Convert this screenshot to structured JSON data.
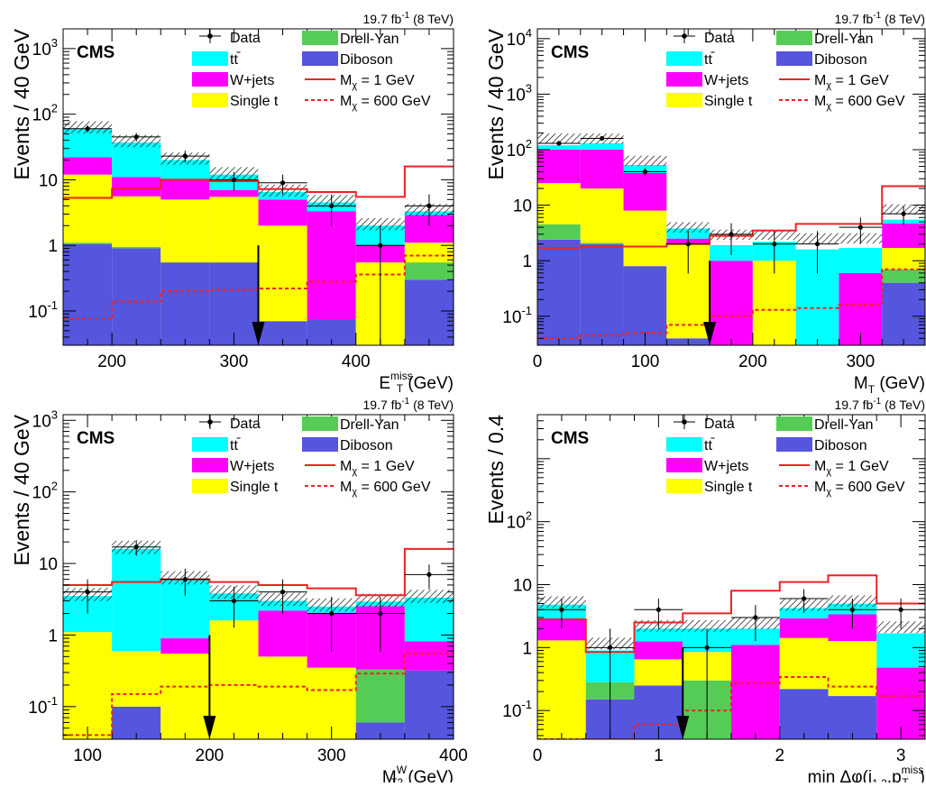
{
  "colors": {
    "ttbar": "#00ffff",
    "wjets": "#ff00ff",
    "single_t": "#ffff00",
    "dy": "#55cc55",
    "diboson": "#5555dd",
    "signal": "#ee2222"
  },
  "chart_data": [
    {
      "type": "bar",
      "stacked": true,
      "log_y": true,
      "lumi_label": "19.7 fb",
      "lumi_sup": "-1",
      "lumi_suffix": " (8 TeV)",
      "cms_label": "CMS",
      "ylabel": "Events / 40 GeV",
      "xlabel": "E",
      "xlabel_sup": "miss",
      "xlabel_sub": "T",
      "xlabel_suffix": " (GeV)",
      "x_range": [
        160,
        480
      ],
      "y_range": [
        0.03,
        2000
      ],
      "x_ticks": [
        "200",
        "300",
        "400"
      ],
      "y_ticks": [
        {
          "base": "10",
          "exp": "-1"
        },
        {
          "base": "1",
          "exp": ""
        },
        {
          "base": "10",
          "exp": ""
        },
        {
          "base": "10",
          "exp": "2"
        },
        {
          "base": "10",
          "exp": "3"
        }
      ],
      "bin_edges": [
        160,
        200,
        240,
        280,
        320,
        360,
        400,
        440,
        480
      ],
      "stack": [
        {
          "name": "Diboson",
          "values": [
            1.05,
            0.9,
            0.55,
            0.55,
            0.07,
            0.075,
            0.0,
            0.3
          ]
        },
        {
          "name": "Drell-Yan",
          "values": [
            0.05,
            0.05,
            0.0,
            0.0,
            0.0,
            0.0,
            0.0,
            0.25
          ]
        },
        {
          "name": "Single t",
          "values": [
            10.9,
            4.65,
            4.45,
            4.95,
            1.93,
            0.0,
            0.55,
            0.55
          ]
        },
        {
          "name": "W+jets",
          "values": [
            10.0,
            5.4,
            5.0,
            1.5,
            3.0,
            3.25,
            0.45,
            1.8
          ]
        },
        {
          "name": "tt",
          "values": [
            38.0,
            26.0,
            10.0,
            5.0,
            1.5,
            1.2,
            1.0,
            0.4
          ]
        }
      ],
      "total": [
        60,
        37,
        20,
        12,
        6.5,
        4.5,
        2.0,
        3.3
      ],
      "data": [
        60,
        45,
        23,
        10,
        9,
        4,
        1,
        4
      ],
      "signal_1": [
        5.3,
        7.3,
        10,
        9.5,
        7.2,
        6.5,
        5.5,
        16
      ],
      "signal_600": [
        0.075,
        0.14,
        0.2,
        0.21,
        0.22,
        0.28,
        0.36,
        0.7
      ],
      "cut": 320,
      "legend": {
        "data": "Data",
        "tt": "tt",
        "wjets": "W+jets",
        "single_t": "Single t",
        "dy": "Drell-Yan",
        "diboson": "Diboson",
        "sig1": "M",
        "sig1_sub": "χ",
        "sig1_val": " = 1 GeV",
        "sig600": "M",
        "sig600_sub": "χ",
        "sig600_val": " = 600 GeV"
      }
    },
    {
      "type": "bar",
      "stacked": true,
      "log_y": true,
      "lumi_label": "19.7 fb",
      "lumi_sup": "-1",
      "lumi_suffix": " (8 TeV)",
      "cms_label": "CMS",
      "ylabel": "Events / 40 GeV",
      "xlabel": "M",
      "xlabel_sup": "",
      "xlabel_sub": "T",
      "xlabel_suffix": " (GeV)",
      "x_range": [
        0,
        360
      ],
      "y_range": [
        0.03,
        15000
      ],
      "x_ticks": [
        "0",
        "100",
        "200",
        "300"
      ],
      "y_ticks": [
        {
          "base": "10",
          "exp": "-1"
        },
        {
          "base": "1",
          "exp": ""
        },
        {
          "base": "10",
          "exp": ""
        },
        {
          "base": "10",
          "exp": "2"
        },
        {
          "base": "10",
          "exp": "3"
        },
        {
          "base": "10",
          "exp": "4"
        }
      ],
      "bin_edges": [
        0,
        40,
        80,
        120,
        160,
        200,
        240,
        280,
        320,
        360
      ],
      "stack": [
        {
          "name": "Diboson",
          "values": [
            2.4,
            2.0,
            0.8,
            0.04,
            0.0,
            0.0,
            0.0,
            0.0,
            0.4
          ]
        },
        {
          "name": "Drell-Yan",
          "values": [
            2.1,
            0.1,
            0.0,
            0.0,
            0.0,
            0.0,
            0.0,
            0.0,
            0.3
          ]
        },
        {
          "name": "Single t",
          "values": [
            20.5,
            17.9,
            7.2,
            1.96,
            0.0,
            1.0,
            0.0,
            0.0,
            1.0
          ]
        },
        {
          "name": "W+jets",
          "values": [
            75,
            80,
            30,
            0.5,
            1.0,
            0.0,
            0.0,
            0.6,
            3.0
          ]
        },
        {
          "name": "tt",
          "values": [
            20,
            30,
            15,
            1.3,
            0.9,
            1.2,
            1.6,
            1.1,
            0.8
          ]
        }
      ],
      "total": [
        150,
        150,
        60,
        3.8,
        2.8,
        2.8,
        2.4,
        2.4,
        8
      ],
      "data": [
        130,
        160,
        40,
        2,
        3,
        2,
        2,
        4,
        7
      ],
      "signal_1": [
        1.7,
        1.8,
        1.8,
        2.0,
        2.8,
        3.5,
        4.6,
        4.6,
        22
      ],
      "signal_600": [
        0.04,
        0.045,
        0.05,
        0.07,
        0.1,
        0.13,
        0.14,
        0.16,
        0.7
      ],
      "cut": 160,
      "legend": {
        "data": "Data",
        "tt": "tt",
        "wjets": "W+jets",
        "single_t": "Single t",
        "dy": "Drell-Yan",
        "diboson": "Diboson",
        "sig1": "M",
        "sig1_sub": "χ",
        "sig1_val": " = 1 GeV",
        "sig600": "M",
        "sig600_sub": "χ",
        "sig600_val": " = 600 GeV"
      }
    },
    {
      "type": "bar",
      "stacked": true,
      "log_y": true,
      "lumi_label": "19.7 fb",
      "lumi_sup": "-1",
      "lumi_suffix": " (8 TeV)",
      "cms_label": "CMS",
      "ylabel": "Events / 40 GeV",
      "xlabel": "M",
      "xlabel_sup": "W",
      "xlabel_sub": "T2",
      "xlabel_suffix": " (GeV)",
      "x_range": [
        80,
        400
      ],
      "y_range": [
        0.035,
        1200
      ],
      "x_ticks": [
        "100",
        "200",
        "300",
        "400"
      ],
      "y_ticks": [
        {
          "base": "10",
          "exp": "-1"
        },
        {
          "base": "1",
          "exp": ""
        },
        {
          "base": "10",
          "exp": ""
        },
        {
          "base": "10",
          "exp": "2"
        },
        {
          "base": "10",
          "exp": "3"
        }
      ],
      "bin_edges": [
        80,
        120,
        160,
        200,
        240,
        280,
        320,
        360,
        400
      ],
      "stack": [
        {
          "name": "Diboson",
          "values": [
            0.0,
            0.1,
            0.0,
            0.0,
            0.0,
            0.0,
            0.06,
            0.32
          ]
        },
        {
          "name": "Drell-Yan",
          "values": [
            0.0,
            0.0,
            0.0,
            0.0,
            0.0,
            0.0,
            0.27,
            0.0
          ]
        },
        {
          "name": "Single t",
          "values": [
            1.1,
            0.5,
            0.55,
            1.6,
            0.5,
            0.35,
            0.0,
            0.0
          ]
        },
        {
          "name": "W+jets",
          "values": [
            0.0,
            0.0,
            0.35,
            0.0,
            1.7,
            1.7,
            2.2,
            0.5
          ]
        },
        {
          "name": "tt",
          "values": [
            2.4,
            15.4,
            5.1,
            2.2,
            0.8,
            0.45,
            0.4,
            2.5
          ]
        }
      ],
      "total": [
        3.5,
        16,
        6,
        3.8,
        3.0,
        2.5,
        2.9,
        3.3
      ],
      "data": [
        4,
        17,
        6,
        3,
        4,
        2,
        2,
        7
      ],
      "signal_1": [
        5,
        5.5,
        6,
        5.5,
        5.0,
        4.5,
        3.6,
        16
      ],
      "signal_600": [
        0.04,
        0.15,
        0.19,
        0.2,
        0.19,
        0.17,
        0.29,
        0.55
      ],
      "cut": 200,
      "legend": {
        "data": "Data",
        "tt": "tt",
        "wjets": "W+jets",
        "single_t": "Single t",
        "dy": "Drell-Yan",
        "diboson": "Diboson",
        "sig1": "M",
        "sig1_sub": "χ",
        "sig1_val": " = 1 GeV",
        "sig600": "M",
        "sig600_sub": "χ",
        "sig600_val": " = 600 GeV"
      }
    },
    {
      "type": "bar",
      "stacked": true,
      "log_y": true,
      "lumi_label": "19.7 fb",
      "lumi_sup": "-1",
      "lumi_suffix": " (8 TeV)",
      "cms_label": "CMS",
      "ylabel": "Events / 0.4",
      "xlabel": "min Δφ(j",
      "xlabel_sup": "",
      "xlabel_sub": "1,2",
      "xlabel_suffix": ",p",
      "xlabel_tail_sup": "miss",
      "xlabel_tail_sub": "T",
      "xlabel_end": ")",
      "x_range": [
        0,
        3.2
      ],
      "y_range": [
        0.035,
        5000
      ],
      "x_ticks": [
        "0",
        "1",
        "2",
        "3"
      ],
      "y_ticks": [
        {
          "base": "10",
          "exp": "-1"
        },
        {
          "base": "1",
          "exp": ""
        },
        {
          "base": "10",
          "exp": ""
        },
        {
          "base": "10",
          "exp": "2"
        }
      ],
      "bin_edges": [
        0,
        0.4,
        0.8,
        1.2,
        1.6,
        2.0,
        2.4,
        2.8,
        3.2
      ],
      "stack": [
        {
          "name": "Diboson",
          "values": [
            0.0,
            0.15,
            0.25,
            0.0,
            0.0,
            0.22,
            0.17,
            0.0
          ]
        },
        {
          "name": "Drell-Yan",
          "values": [
            0.0,
            0.13,
            0.0,
            0.3,
            0.0,
            0.0,
            0.0,
            0.0
          ]
        },
        {
          "name": "Single t",
          "values": [
            1.3,
            0.0,
            0.4,
            0.55,
            0.0,
            1.2,
            1.1,
            0.0
          ]
        },
        {
          "name": "W+jets",
          "values": [
            1.6,
            0.0,
            0.6,
            0.0,
            1.1,
            1.5,
            2.1,
            0.48
          ]
        },
        {
          "name": "tt",
          "values": [
            1.9,
            0.62,
            0.75,
            1.15,
            0.9,
            1.3,
            1.6,
            1.2
          ]
        }
      ],
      "total": [
        5,
        1.1,
        2.1,
        2.1,
        2.3,
        4.5,
        5.2,
        2.0
      ],
      "data": [
        4,
        1,
        4,
        1,
        3,
        6,
        4,
        4
      ],
      "signal_1": [
        2.8,
        0.85,
        2.5,
        3.5,
        8,
        11,
        14,
        5
      ],
      "signal_600": [
        0.003,
        0.003,
        0.06,
        0.1,
        0.27,
        0.34,
        0.24,
        0.17
      ],
      "cut": 1.2,
      "legend": {
        "data": "Data",
        "tt": "tt",
        "wjets": "W+jets",
        "single_t": "Single t",
        "dy": "Drell-Yan",
        "diboson": "Diboson",
        "sig1": "M",
        "sig1_sub": "χ",
        "sig1_val": " = 1 GeV",
        "sig600": "M",
        "sig600_sub": "χ",
        "sig600_val": " = 600 GeV"
      }
    }
  ]
}
